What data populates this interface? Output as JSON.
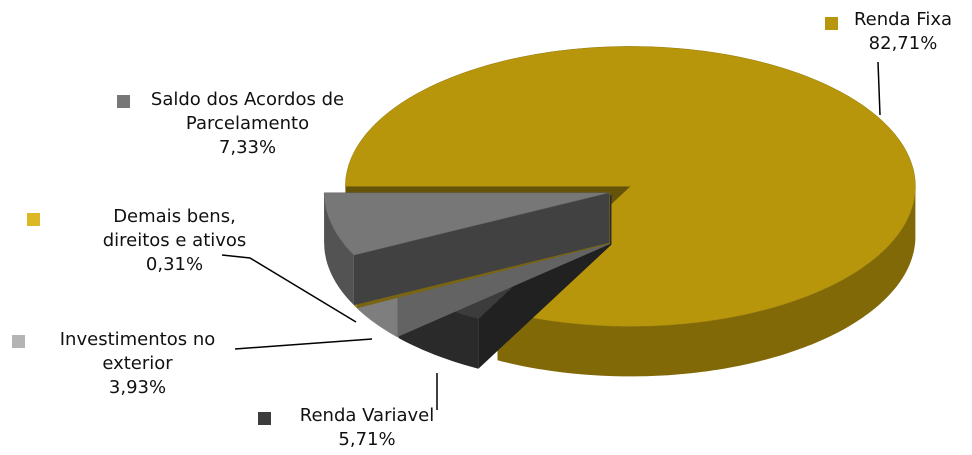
{
  "chart_data": {
    "type": "pie",
    "categories": [
      "Renda Fixa",
      "Renda Variavel",
      "Investimentos no exterior",
      "Demais bens, direitos e ativos",
      "Saldo dos Acordos de Parcelamento"
    ],
    "values": [
      82.71,
      5.71,
      3.93,
      0.31,
      7.33
    ],
    "value_labels": [
      "82,71%",
      "5,71%",
      "3,93%",
      "0,31%",
      "7,33%"
    ],
    "colors": [
      "#b8960c",
      "#3c3c3c",
      "#b4b4b4",
      "#dcb824",
      "#777777"
    ]
  }
}
